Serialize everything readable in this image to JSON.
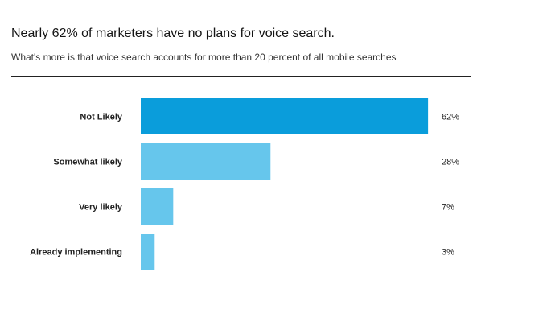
{
  "chart_data": {
    "type": "bar",
    "orientation": "horizontal",
    "title": "Nearly 62% of marketers have no plans for voice search.",
    "subtitle": "What's more is that voice search accounts for more than 20 percent of all mobile searches",
    "categories": [
      "Not Likely",
      "Somewhat likely",
      "Very likely",
      "Already implementing"
    ],
    "values": [
      62,
      28,
      7,
      3
    ],
    "value_labels": [
      "62%",
      "28%",
      "7%",
      "3%"
    ],
    "xlim": [
      0,
      100
    ],
    "grid": false,
    "legend": "none",
    "colors": [
      "#0a9ddb",
      "#66c6ec",
      "#66c6ec",
      "#66c6ec"
    ]
  }
}
